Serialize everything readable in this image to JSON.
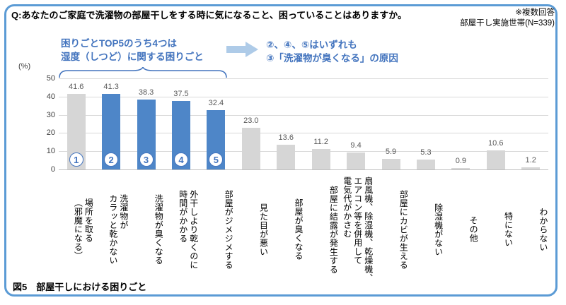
{
  "header": {
    "question": "Q:あなたのご家庭で洗濯物の部屋干しをする時に気になること、困っていることはありますか。",
    "note1": "※複数回答",
    "note2": "部屋干し実施世帯(N=339)"
  },
  "annotation": {
    "left_text": "困りごとTOP5のうち4つは\n湿度（しつど）に関する困りごと",
    "right_text": "②、④、⑤はいずれも\n③「洗濯物が臭くなる」の原因",
    "arrow_icon": "right-block-arrow"
  },
  "chart_data": {
    "type": "bar",
    "ylabel": "(%)",
    "ylim": [
      0,
      50
    ],
    "yticks": [
      0,
      10,
      20,
      30,
      40,
      50
    ],
    "grid": true,
    "categories": [
      "場所を取る\n（邪魔になる）",
      "洗濯物が\nカラッと乾かない",
      "洗濯物が臭くなる",
      "外干しより乾くのに\n時間がかかる",
      "部屋がジメジメする",
      "見た目が悪い",
      "部屋が臭くなる",
      "部屋に結露が発生する",
      "扇風機、除湿機、乾燥機、\nエアコン等を併用して\n電気代がかさむ",
      "部屋にカビが生える",
      "除湿機がない",
      "その他",
      "特にない",
      "わからない"
    ],
    "values": [
      41.6,
      41.3,
      38.3,
      37.5,
      32.4,
      23.0,
      13.6,
      11.2,
      9.4,
      5.9,
      5.3,
      0.9,
      10.6,
      1.2
    ],
    "value_labels": [
      "41.6",
      "41.3",
      "38.3",
      "37.5",
      "32.4",
      "23.0",
      "13.6",
      "11.2",
      "9.4",
      "5.9",
      "5.3",
      "0.9",
      "10.6",
      "1.2"
    ],
    "markers": [
      "1",
      "2",
      "3",
      "4",
      "5"
    ],
    "highlight_indices": [
      1,
      2,
      3,
      4
    ],
    "colors": {
      "highlight_bar": "#4E86C8",
      "normal_bar": "#D6D6D6",
      "accent_text": "#4374BE",
      "arrow_fill": "#AECBE8",
      "frame_border": "#5B9BD5"
    }
  },
  "caption": "図5　部屋干しにおける困りごと"
}
